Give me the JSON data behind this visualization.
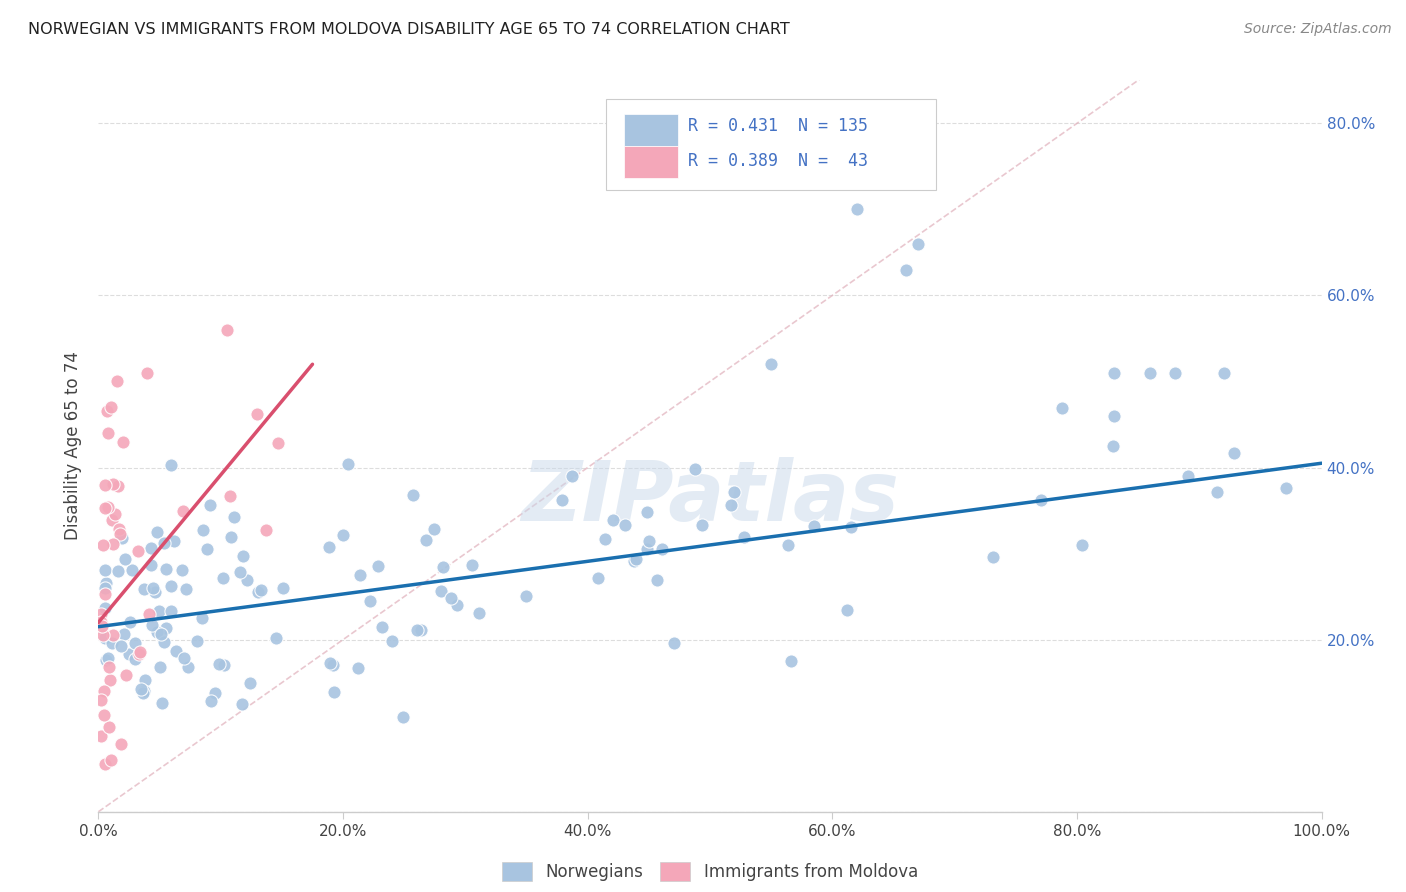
{
  "title": "NORWEGIAN VS IMMIGRANTS FROM MOLDOVA DISABILITY AGE 65 TO 74 CORRELATION CHART",
  "source": "Source: ZipAtlas.com",
  "ylabel_label": "Disability Age 65 to 74",
  "x_min": 0.0,
  "x_max": 1.0,
  "y_min": 0.0,
  "y_max": 0.85,
  "x_ticks": [
    0.0,
    0.2,
    0.4,
    0.6,
    0.8,
    1.0
  ],
  "y_ticks": [
    0.0,
    0.2,
    0.4,
    0.6,
    0.8
  ],
  "x_tick_labels": [
    "0.0%",
    "20.0%",
    "40.0%",
    "60.0%",
    "80.0%",
    "100.0%"
  ],
  "y_tick_labels_right": [
    "20.0%",
    "40.0%",
    "60.0%",
    "80.0%"
  ],
  "y_ticks_right": [
    0.2,
    0.4,
    0.6,
    0.8
  ],
  "norwegian_color": "#a8c4e0",
  "moldova_color": "#f4a7b9",
  "norwegian_line_color": "#1a6faf",
  "moldova_line_color": "#d94f6e",
  "diag_line_color": "#d0d0d0",
  "legend_R1": "0.431",
  "legend_N1": "135",
  "legend_R2": "0.389",
  "legend_N2": "43",
  "watermark": "ZIPatlas",
  "background_color": "#ffffff",
  "grid_color": "#dddddd",
  "norwegian_trend_x": [
    0.0,
    1.0
  ],
  "norwegian_trend_y": [
    0.215,
    0.405
  ],
  "moldovan_trend_x": [
    0.0,
    0.175
  ],
  "moldovan_trend_y": [
    0.22,
    0.52
  ]
}
